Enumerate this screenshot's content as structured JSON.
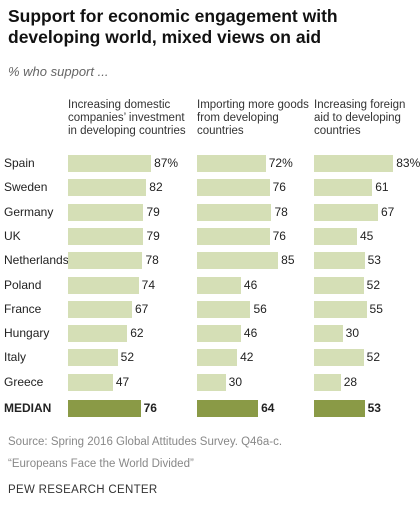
{
  "header": {
    "title": "Support for economic engagement with developing world, mixed views on aid",
    "subtitle": "% who support ..."
  },
  "colors": {
    "bar": "#d5dfb6",
    "median_bar": "#8a9a46"
  },
  "footer": {
    "source": "Source: Spring 2016 Global Attitudes Survey. Q46a-c.",
    "report": "“Europeans Face the World Divided”",
    "org": "PEW RESEARCH CENTER"
  },
  "chart_data": {
    "type": "bar",
    "orientation": "horizontal",
    "categories": [
      "Spain",
      "Sweden",
      "Germany",
      "UK",
      "Netherlands",
      "Poland",
      "France",
      "Hungary",
      "Italy",
      "Greece",
      "MEDIAN"
    ],
    "series": [
      {
        "name": "Increasing domestic companies’ investment in developing countries",
        "values": [
          87,
          82,
          79,
          79,
          78,
          74,
          67,
          62,
          52,
          47,
          76
        ],
        "labels": [
          "87%",
          "82",
          "79",
          "79",
          "78",
          "74",
          "67",
          "62",
          "52",
          "47",
          "76"
        ]
      },
      {
        "name": "Importing more goods from developing countries",
        "values": [
          72,
          76,
          78,
          76,
          85,
          46,
          56,
          46,
          42,
          30,
          64
        ],
        "labels": [
          "72%",
          "76",
          "78",
          "76",
          "85",
          "46",
          "56",
          "46",
          "42",
          "30",
          "64"
        ]
      },
      {
        "name": "Increasing foreign aid to developing countries",
        "values": [
          83,
          61,
          67,
          45,
          53,
          52,
          55,
          30,
          52,
          28,
          53
        ],
        "labels": [
          "83%",
          "61",
          "67",
          "45",
          "53",
          "52",
          "55",
          "30",
          "52",
          "28",
          "53"
        ]
      }
    ],
    "xlim": [
      0,
      100
    ],
    "grid": false,
    "legend": "none"
  }
}
